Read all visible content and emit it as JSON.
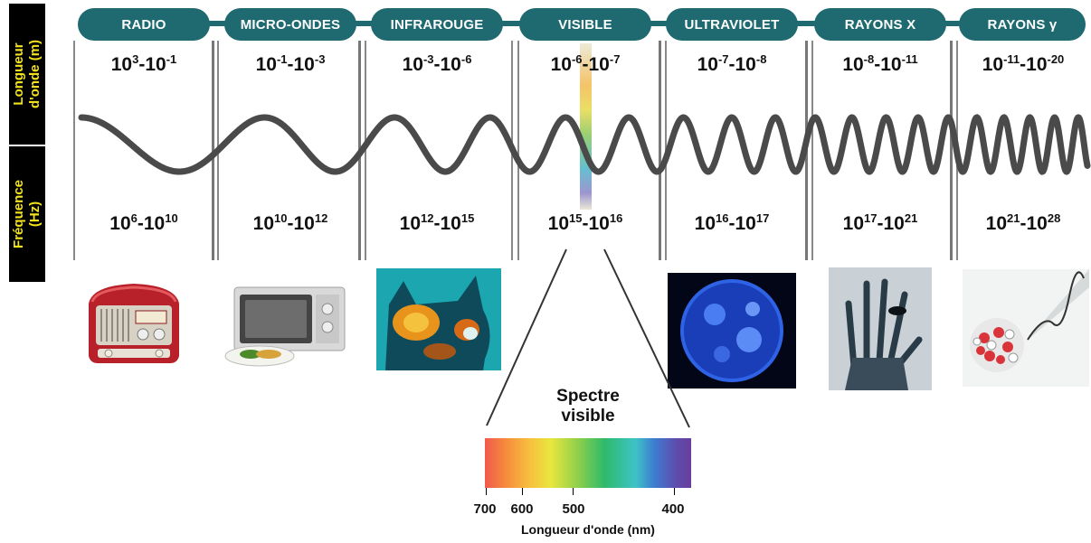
{
  "bands": [
    {
      "name": "RADIO",
      "wavelength": [
        "10",
        "3",
        "-10",
        "-1"
      ],
      "frequency": [
        "10",
        "6",
        "-10",
        "10"
      ]
    },
    {
      "name": "MICRO-ONDES",
      "wavelength": [
        "10",
        "-1",
        "-10",
        "-3"
      ],
      "frequency": [
        "10",
        "10",
        "-10",
        "12"
      ]
    },
    {
      "name": "INFRAROUGE",
      "wavelength": [
        "10",
        "-3",
        "-10",
        "-6"
      ],
      "frequency": [
        "10",
        "12",
        "-10",
        "15"
      ]
    },
    {
      "name": "VISIBLE",
      "wavelength": [
        "10",
        "-6",
        "-10",
        "-7"
      ],
      "frequency": [
        "10",
        "15",
        "-10",
        "16"
      ]
    },
    {
      "name": "ULTRAVIOLET",
      "wavelength": [
        "10",
        "-7",
        "-10",
        "-8"
      ],
      "frequency": [
        "10",
        "16",
        "-10",
        "17"
      ]
    },
    {
      "name": "RAYONS X",
      "wavelength": [
        "10",
        "-8",
        "-10",
        "-11"
      ],
      "frequency": [
        "10",
        "17",
        "-10",
        "21"
      ]
    },
    {
      "name": "RAYONS γ",
      "wavelength": [
        "10",
        "-11",
        "-10",
        "-20"
      ],
      "frequency": [
        "10",
        "21",
        "-10",
        "28"
      ]
    }
  ],
  "side_labels": {
    "wavelength": [
      "Longueur",
      "d'onde (m)"
    ],
    "frequency": [
      "Fréquence",
      "(Hz)"
    ]
  },
  "spectrum": {
    "title": [
      "Spectre",
      "visible"
    ],
    "ticks": [
      "700",
      "600",
      "500",
      "400"
    ],
    "axis_label": "Longueur d'onde (nm)"
  },
  "colors": {
    "pill": "#1e6a70",
    "side_bg": "#000000",
    "side_text": "#f2e21c",
    "wave": "#4a4a4a"
  },
  "illustrations": [
    "radio-icon",
    "microwave-oven-icon",
    "infrared-cat-icon",
    "ultraviolet-sun-icon",
    "xray-hand-icon",
    "gamma-ray-nucleus-icon"
  ]
}
